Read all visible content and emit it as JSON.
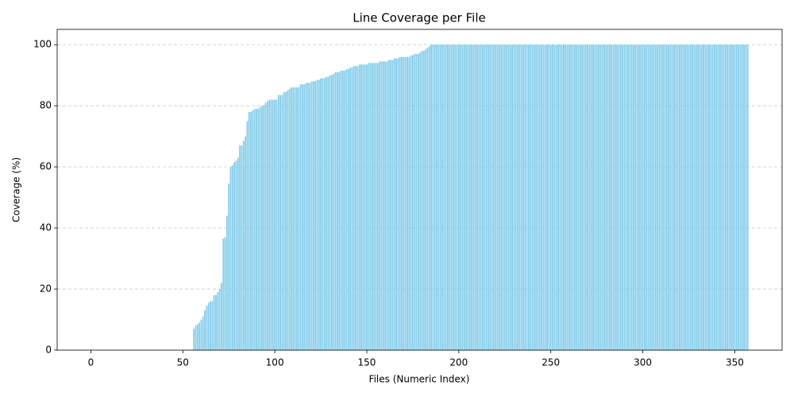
{
  "chart_data": {
    "type": "bar",
    "title": "Line Coverage per File",
    "x_label": "Files (Numeric Index)",
    "y_label": "Coverage (%)",
    "color": "#87ceeb",
    "grid": true,
    "xlim": [
      -18.3,
      375.7
    ],
    "xticks": [
      0,
      50,
      100,
      150,
      200,
      250,
      300,
      350
    ],
    "ylim": [
      0,
      105
    ],
    "yticks": [
      0,
      20,
      40,
      60,
      80,
      100
    ],
    "x": [
      0,
      1,
      2,
      3,
      4,
      5,
      6,
      7,
      8,
      9,
      10,
      11,
      12,
      13,
      14,
      15,
      16,
      17,
      18,
      19,
      20,
      21,
      22,
      23,
      24,
      25,
      26,
      27,
      28,
      29,
      30,
      31,
      32,
      33,
      34,
      35,
      36,
      37,
      38,
      39,
      40,
      41,
      42,
      43,
      44,
      45,
      46,
      47,
      48,
      49,
      50,
      51,
      52,
      53,
      54,
      55,
      56,
      57,
      58,
      59,
      60,
      61,
      62,
      63,
      64,
      65,
      66,
      67,
      68,
      69,
      70,
      71,
      72,
      73,
      74,
      75,
      76,
      77,
      78,
      79,
      80,
      81,
      82,
      83,
      84,
      85,
      86,
      87,
      88,
      89,
      90,
      91,
      92,
      93,
      94,
      95,
      96,
      97,
      98,
      99,
      100,
      101,
      102,
      103,
      104,
      105,
      106,
      107,
      108,
      109,
      110,
      111,
      112,
      113,
      114,
      115,
      116,
      117,
      118,
      119,
      120,
      121,
      122,
      123,
      124,
      125,
      126,
      127,
      128,
      129,
      130,
      131,
      132,
      133,
      134,
      135,
      136,
      137,
      138,
      139,
      140,
      141,
      142,
      143,
      144,
      145,
      146,
      147,
      148,
      149,
      150,
      151,
      152,
      153,
      154,
      155,
      156,
      157,
      158,
      159,
      160,
      161,
      162,
      163,
      164,
      165,
      166,
      167,
      168,
      169,
      170,
      171,
      172,
      173,
      174,
      175,
      176,
      177,
      178,
      179,
      180,
      181,
      182,
      183,
      184,
      185,
      186,
      187,
      188,
      189,
      190,
      191,
      192,
      193,
      194,
      195,
      196,
      197,
      198,
      199,
      200,
      201,
      202,
      203,
      204,
      205,
      206,
      207,
      208,
      209,
      210,
      211,
      212,
      213,
      214,
      215,
      216,
      217,
      218,
      219,
      220,
      221,
      222,
      223,
      224,
      225,
      226,
      227,
      228,
      229,
      230,
      231,
      232,
      233,
      234,
      235,
      236,
      237,
      238,
      239,
      240,
      241,
      242,
      243,
      244,
      245,
      246,
      247,
      248,
      249,
      250,
      251,
      252,
      253,
      254,
      255,
      256,
      257,
      258,
      259,
      260,
      261,
      262,
      263,
      264,
      265,
      266,
      267,
      268,
      269,
      270,
      271,
      272,
      273,
      274,
      275,
      276,
      277,
      278,
      279,
      280,
      281,
      282,
      283,
      284,
      285,
      286,
      287,
      288,
      289,
      290,
      291,
      292,
      293,
      294,
      295,
      296,
      297,
      298,
      299,
      300,
      301,
      302,
      303,
      304,
      305,
      306,
      307,
      308,
      309,
      310,
      311,
      312,
      313,
      314,
      315,
      316,
      317,
      318,
      319,
      320,
      321,
      322,
      323,
      324,
      325,
      326,
      327,
      328,
      329,
      330,
      331,
      332,
      333,
      334,
      335,
      336,
      337,
      338,
      339,
      340,
      341,
      342,
      343,
      344,
      345,
      346,
      347,
      348,
      349,
      350,
      351,
      352,
      353,
      354,
      355,
      356,
      357
    ],
    "values": [
      0,
      0,
      0,
      0,
      0,
      0,
      0,
      0,
      0,
      0,
      0,
      0,
      0,
      0,
      0,
      0,
      0,
      0,
      0,
      0,
      0,
      0,
      0,
      0,
      0,
      0,
      0,
      0,
      0,
      0,
      0,
      0,
      0,
      0,
      0,
      0,
      0,
      0,
      0,
      0,
      0,
      0,
      0,
      0,
      0,
      0,
      0,
      0,
      0,
      0,
      0,
      0,
      0,
      0,
      0,
      0,
      7,
      8,
      8.5,
      9,
      10,
      11,
      13,
      14.5,
      15.5,
      16,
      16,
      18,
      18,
      19,
      20,
      22,
      36.5,
      37,
      44,
      54.5,
      60,
      60.5,
      61.5,
      62,
      63,
      67,
      67,
      68.5,
      70,
      75,
      78,
      78,
      78.5,
      79,
      79,
      79,
      79.5,
      80,
      80,
      81,
      81.5,
      82,
      82,
      82,
      82,
      82,
      83.5,
      83.5,
      83.5,
      84.5,
      84.5,
      85,
      85.5,
      86,
      86,
      86,
      86,
      86,
      87,
      87,
      87,
      87.5,
      87.5,
      87.5,
      88,
      88,
      88,
      88.5,
      88.5,
      89,
      89,
      89,
      89.5,
      89.5,
      90,
      90,
      90.5,
      91,
      91,
      91,
      91.5,
      91.5,
      91.5,
      92,
      92,
      92.5,
      92.5,
      93,
      93,
      93,
      93.5,
      93.5,
      93.5,
      93.5,
      93.5,
      94,
      94,
      94,
      94,
      94,
      94,
      94.5,
      94.5,
      94.5,
      94.5,
      94.5,
      95,
      95,
      95,
      95.5,
      95.5,
      95.5,
      96,
      96,
      96,
      96,
      96,
      96,
      96.5,
      96.5,
      97,
      97,
      97,
      97.5,
      98,
      98,
      98.5,
      99,
      99.5,
      100,
      100,
      100,
      100,
      100,
      100,
      100,
      100,
      100,
      100,
      100,
      100,
      100,
      100,
      100,
      100,
      100,
      100,
      100,
      100,
      100,
      100,
      100,
      100,
      100,
      100,
      100,
      100,
      100,
      100,
      100,
      100,
      100,
      100,
      100,
      100,
      100,
      100,
      100,
      100,
      100,
      100,
      100,
      100,
      100,
      100,
      100,
      100,
      100,
      100,
      100,
      100,
      100,
      100,
      100,
      100,
      100,
      100,
      100,
      100,
      100,
      100,
      100,
      100,
      100,
      100,
      100,
      100,
      100,
      100,
      100,
      100,
      100,
      100,
      100,
      100,
      100,
      100,
      100,
      100,
      100,
      100,
      100,
      100,
      100,
      100,
      100,
      100,
      100,
      100,
      100,
      100,
      100,
      100,
      100,
      100,
      100,
      100,
      100,
      100,
      100,
      100,
      100,
      100,
      100,
      100,
      100,
      100,
      100,
      100,
      100,
      100,
      100,
      100,
      100,
      100,
      100,
      100,
      100,
      100,
      100,
      100,
      100,
      100,
      100,
      100,
      100,
      100,
      100,
      100,
      100,
      100,
      100,
      100,
      100,
      100,
      100,
      100,
      100,
      100,
      100,
      100,
      100,
      100,
      100,
      100,
      100,
      100,
      100,
      100,
      100,
      100,
      100,
      100,
      100,
      100,
      100,
      100,
      100,
      100,
      100,
      100,
      100,
      100,
      100,
      100,
      100,
      100,
      100,
      100,
      100,
      100,
      100
    ]
  }
}
